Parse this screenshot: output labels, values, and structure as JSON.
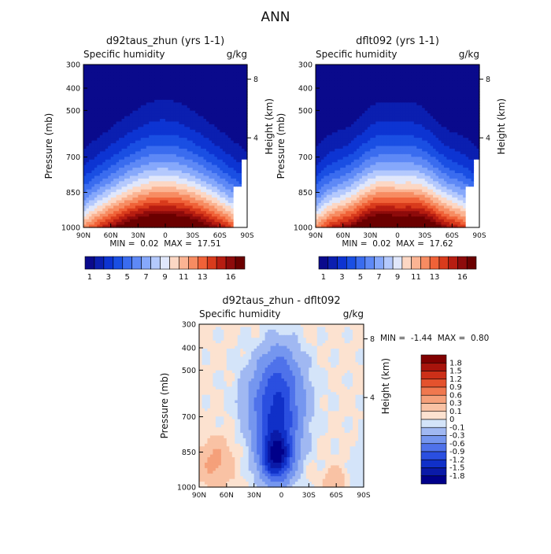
{
  "page_title": "ANN",
  "chart_data": [
    {
      "type": "heatmap",
      "id": "panel1",
      "title": "d92taus_zhun (yrs 1-1)",
      "subtitle_left": "Specific humidity",
      "subtitle_right": "g/kg",
      "ylabel": "Pressure (mb)",
      "ylabel_right": "Height (km)",
      "pressure_ticks": [
        "300",
        "400",
        "500",
        "700",
        "850",
        "1000"
      ],
      "height_ticks": [
        "8",
        "4"
      ],
      "lat_ticks": [
        "90N",
        "60N",
        "30N",
        "0",
        "30S",
        "60S",
        "90S"
      ],
      "min_label": "MIN =",
      "min_value": "0.02",
      "max_label": "MAX =",
      "max_value": "17.51",
      "colorbar_labels": [
        "1",
        "3",
        "5",
        "7",
        "9",
        "11",
        "13",
        "16"
      ],
      "levels": [
        1,
        2,
        3,
        4,
        5,
        6,
        7,
        8,
        9,
        10,
        11,
        12,
        13,
        14,
        15,
        16
      ],
      "colors": [
        "#0a0a8c",
        "#0b1fb0",
        "#0d34d2",
        "#1a4fe3",
        "#3a6cef",
        "#5e89f6",
        "#86a8fb",
        "#b4c9fd",
        "#e0e7fb",
        "#fcd7c4",
        "#fbb493",
        "#f78c62",
        "#f06238",
        "#d93b1c",
        "#b71d11",
        "#8e0b0b",
        "#6b0000"
      ],
      "min": 0.02,
      "max": 17.51
    },
    {
      "type": "heatmap",
      "id": "panel2",
      "title": "dflt092 (yrs 1-1)",
      "subtitle_left": "Specific humidity",
      "subtitle_right": "g/kg",
      "ylabel": "Pressure (mb)",
      "ylabel_right": "Height (km)",
      "pressure_ticks": [
        "300",
        "400",
        "500",
        "700",
        "850",
        "1000"
      ],
      "height_ticks": [
        "8",
        "4"
      ],
      "lat_ticks": [
        "90N",
        "60N",
        "30N",
        "0",
        "30S",
        "60S",
        "90S"
      ],
      "min_label": "MIN =",
      "min_value": "0.02",
      "max_label": "MAX =",
      "max_value": "17.62",
      "colorbar_labels": [
        "1",
        "3",
        "5",
        "7",
        "9",
        "11",
        "13",
        "16"
      ],
      "levels": [
        1,
        2,
        3,
        4,
        5,
        6,
        7,
        8,
        9,
        10,
        11,
        12,
        13,
        14,
        15,
        16
      ],
      "colors": [
        "#0a0a8c",
        "#0b1fb0",
        "#0d34d2",
        "#1a4fe3",
        "#3a6cef",
        "#5e89f6",
        "#86a8fb",
        "#b4c9fd",
        "#e0e7fb",
        "#fcd7c4",
        "#fbb493",
        "#f78c62",
        "#f06238",
        "#d93b1c",
        "#b71d11",
        "#8e0b0b",
        "#6b0000"
      ],
      "min": 0.02,
      "max": 17.62
    },
    {
      "type": "heatmap",
      "id": "panel3",
      "title": "d92taus_zhun - dflt092",
      "subtitle_left": "Specific humidity",
      "subtitle_right": "g/kg",
      "ylabel": "Pressure (mb)",
      "ylabel_right": "Height (km)",
      "pressure_ticks": [
        "300",
        "400",
        "500",
        "700",
        "850",
        "1000"
      ],
      "height_ticks": [
        "8",
        "4"
      ],
      "lat_ticks": [
        "90N",
        "60N",
        "30N",
        "0",
        "30S",
        "60S",
        "90S"
      ],
      "min_label": "MIN =",
      "min_value": "-1.44",
      "max_label": "MAX =",
      "max_value": "0.80",
      "colorbar_labels": [
        "1.8",
        "1.5",
        "1.2",
        "0.9",
        "0.6",
        "0.3",
        "0.1",
        "0",
        "-0.1",
        "-0.3",
        "-0.6",
        "-0.9",
        "-1.2",
        "-1.5",
        "-1.8"
      ],
      "levels": [
        -1.8,
        -1.5,
        -1.2,
        -0.9,
        -0.6,
        -0.3,
        -0.1,
        0,
        0.1,
        0.3,
        0.6,
        0.9,
        1.2,
        1.5,
        1.8
      ],
      "colors": [
        "#00008a",
        "#0a1aa8",
        "#1030c8",
        "#2a4fe0",
        "#4f72ea",
        "#7596ef",
        "#a0b8f2",
        "#d4e4f9",
        "#fce2d0",
        "#f9c2a4",
        "#f5a07a",
        "#f0784f",
        "#e4522d",
        "#cc2f18",
        "#a8140c",
        "#800000"
      ],
      "min": -1.44,
      "max": 0.8
    }
  ]
}
